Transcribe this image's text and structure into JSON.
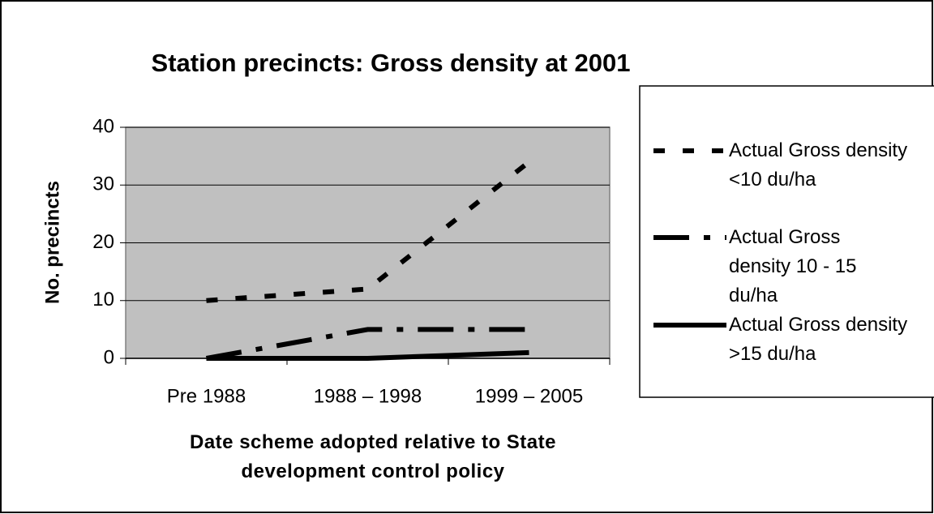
{
  "chart_data": {
    "type": "line",
    "title": "Station precincts: Gross density at 2001",
    "x_label": "Date scheme adopted relative to State development control policy",
    "y_label": "No. precincts",
    "categories": [
      "Pre 1988",
      "1988 – 1998",
      "1999 – 2005"
    ],
    "series": [
      {
        "name": "Actual Gross density <10 du/ha",
        "color": "#000000",
        "values": [
          10,
          12,
          34
        ]
      },
      {
        "name": "Actual Gross density 10 - 15 du/ha",
        "color": "#000000",
        "values": [
          0,
          5,
          5
        ]
      },
      {
        "name": "Actual Gross density >15 du/ha",
        "color": "#000000",
        "values": [
          0,
          0,
          1
        ]
      }
    ],
    "ylim": [
      0,
      40
    ],
    "yticks": [
      0,
      10,
      20,
      30,
      40
    ],
    "grid": true,
    "plot_background": "#c0c0c0",
    "legend": "right"
  }
}
